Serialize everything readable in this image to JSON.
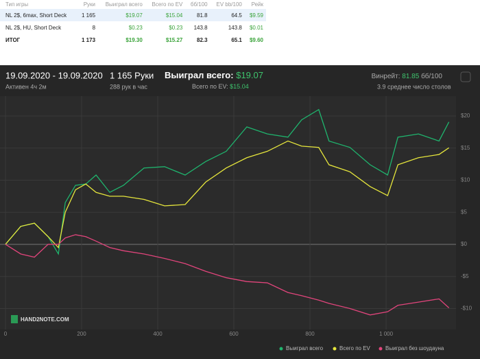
{
  "table": {
    "header": [
      "Тип игры",
      "Руки",
      "Выиграл всего",
      "Всего по EV",
      "бб/100",
      "EV bb/100",
      "Рейк"
    ],
    "rows": [
      [
        "NL 2$, 6max, Short Deck",
        "1 165",
        "$19.07",
        "$15.04",
        "81.8",
        "64.5",
        "$9.59"
      ],
      [
        "NL 2$, HU, Short Deck",
        "8",
        "$0.23",
        "$0.23",
        "143.8",
        "143.8",
        "$0.01"
      ],
      [
        "ИТОГ",
        "1 173",
        "$19.30",
        "$15.27",
        "82.3",
        "65.1",
        "$9.60"
      ]
    ]
  },
  "summary": {
    "period": "19.09.2020 - 19.09.2020",
    "active": "Активен 4ч 2м",
    "hands": "1 165 Руки",
    "rate": "288 рук в час",
    "won_label": "Выиграл всего:",
    "won_value": "$19.07",
    "ev_label": "Всего по EV:",
    "ev_value": "$15.04",
    "winrate_label": "Винрейт:",
    "winrate_value": "81.85",
    "winrate_unit": "бб/100",
    "tables": "3.9 среднее число столов",
    "logo": "HAND2NOTE.COM"
  },
  "chart_data": {
    "type": "line",
    "x": [
      0,
      40,
      76,
      112,
      139,
      157,
      184,
      211,
      238,
      274,
      310,
      364,
      418,
      472,
      526,
      580,
      634,
      688,
      742,
      778,
      823,
      850,
      905,
      958,
      1004,
      1031,
      1085,
      1139,
      1165
    ],
    "series": [
      {
        "name": "Выиграл всего",
        "color": "#1fb56e",
        "values": [
          0,
          2.8,
          3.3,
          1.2,
          -1.5,
          6.5,
          9.2,
          9.4,
          10.8,
          8.1,
          9.2,
          11.9,
          12.1,
          10.8,
          12.9,
          14.5,
          18.3,
          17.2,
          16.7,
          19.4,
          21,
          16.1,
          15.1,
          12.4,
          10.8,
          16.7,
          17.2,
          16.1,
          19.07
        ]
      },
      {
        "name": "Всего по EV",
        "color": "#e6e63c",
        "values": [
          0,
          2.8,
          3.3,
          1.2,
          -0.5,
          5,
          8.5,
          9.4,
          8.1,
          7.5,
          7.5,
          7,
          6,
          6.2,
          9.7,
          11.9,
          13.5,
          14.5,
          16.1,
          15.3,
          15.1,
          12.4,
          11.3,
          9,
          7.6,
          12.4,
          13.5,
          14,
          15.04
        ]
      },
      {
        "name": "Выиграл без шоудауна",
        "color": "#e2457c",
        "values": [
          0,
          -1.5,
          -2,
          0,
          0,
          1,
          1.5,
          1.2,
          0.5,
          -0.5,
          -1,
          -1.5,
          -2.2,
          -3,
          -4.2,
          -5.2,
          -5.8,
          -6,
          -7.5,
          -8,
          -8.7,
          -9.2,
          -10,
          -11,
          -10.5,
          -9.5,
          -9,
          -8.5,
          -9.9
        ]
      }
    ],
    "xlim": [
      0,
      1180
    ],
    "ylim": [
      -13,
      22.5
    ],
    "xticks": [
      0,
      200,
      400,
      600,
      800,
      {
        "value": 1000,
        "label": "1 000"
      }
    ],
    "yticks": [
      {
        "value": 20,
        "label": "$20"
      },
      {
        "value": 15,
        "label": "$15"
      },
      {
        "value": 10,
        "label": "$10"
      },
      {
        "value": 5,
        "label": "$5"
      },
      {
        "value": 0,
        "label": "$0"
      },
      {
        "value": -5,
        "label": "-$5"
      },
      {
        "value": -10,
        "label": "-$10"
      }
    ],
    "grid": true
  }
}
